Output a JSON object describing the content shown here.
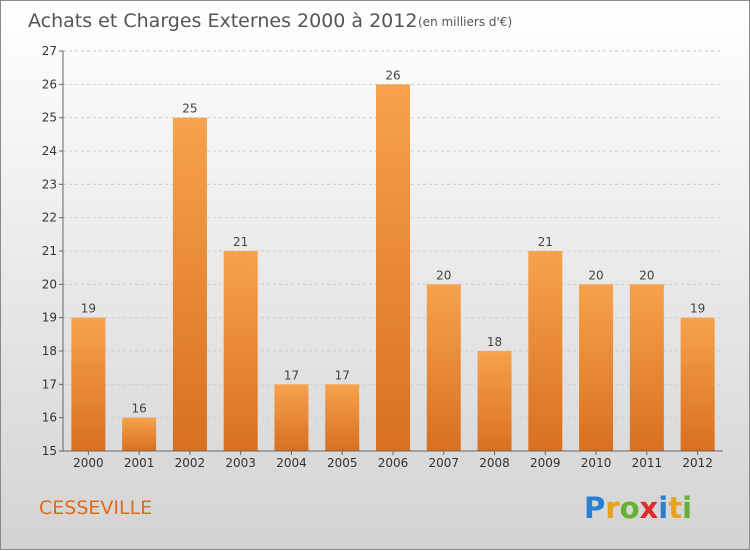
{
  "chart_data": {
    "type": "bar",
    "title": "Achats et Charges Externes 2000 à 2012",
    "subtitle": "(en milliers d'€)",
    "categories": [
      "2000",
      "2001",
      "2002",
      "2003",
      "2004",
      "2005",
      "2006",
      "2007",
      "2008",
      "2009",
      "2010",
      "2011",
      "2012"
    ],
    "values": [
      19,
      16,
      25,
      21,
      17,
      17,
      26,
      20,
      18,
      21,
      20,
      20,
      19
    ],
    "ylim": [
      15,
      27
    ],
    "yticks": [
      15,
      16,
      17,
      18,
      19,
      20,
      21,
      22,
      23,
      24,
      25,
      26,
      27
    ],
    "grid": true,
    "bar_color_top": "#f7a24e",
    "bar_color_bottom": "#d87020",
    "xlabel": "",
    "ylabel": ""
  },
  "footer": {
    "location": "CESSEVILLE",
    "brand": "Proxiti",
    "brand_colors": [
      "#2a7fd0",
      "#e8a21b",
      "#66b032",
      "#e02b2b",
      "#2a7fd0",
      "#e8a21b",
      "#66b032"
    ]
  }
}
